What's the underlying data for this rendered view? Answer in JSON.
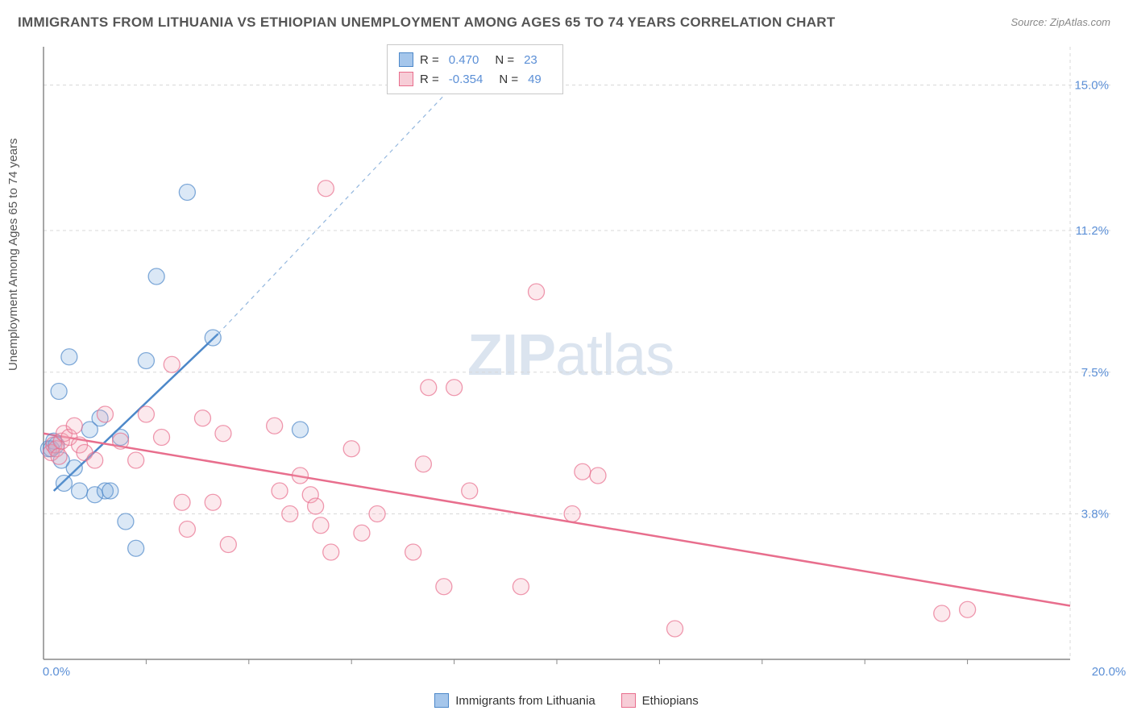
{
  "title": "IMMIGRANTS FROM LITHUANIA VS ETHIOPIAN UNEMPLOYMENT AMONG AGES 65 TO 74 YEARS CORRELATION CHART",
  "source": "Source: ZipAtlas.com",
  "y_axis_label": "Unemployment Among Ages 65 to 74 years",
  "watermark_bold": "ZIP",
  "watermark_light": "atlas",
  "chart": {
    "type": "scatter",
    "xlim": [
      0,
      20
    ],
    "ylim": [
      0,
      16
    ],
    "x_ticks": [
      0,
      20
    ],
    "x_tick_labels": [
      "0.0%",
      "20.0%"
    ],
    "y_ticks": [
      3.8,
      7.5,
      11.2,
      15.0
    ],
    "y_tick_labels": [
      "3.8%",
      "7.5%",
      "11.2%",
      "15.0%"
    ],
    "grid_color": "#d8d8d8",
    "axis_color": "#888888",
    "background_color": "#ffffff",
    "marker_radius": 10,
    "marker_fill_opacity": 0.25,
    "marker_stroke_width": 1.3,
    "series": [
      {
        "name": "Immigrants from Lithuania",
        "color": "#6fa3dd",
        "stroke": "#4d88c9",
        "R": "0.470",
        "N": "23",
        "points": [
          [
            0.1,
            5.5
          ],
          [
            0.15,
            5.5
          ],
          [
            0.2,
            5.7
          ],
          [
            0.25,
            5.6
          ],
          [
            0.3,
            7.0
          ],
          [
            0.35,
            5.2
          ],
          [
            0.4,
            4.6
          ],
          [
            0.5,
            7.9
          ],
          [
            0.6,
            5.0
          ],
          [
            0.7,
            4.4
          ],
          [
            0.9,
            6.0
          ],
          [
            1.0,
            4.3
          ],
          [
            1.1,
            6.3
          ],
          [
            1.2,
            4.4
          ],
          [
            1.3,
            4.4
          ],
          [
            1.5,
            5.8
          ],
          [
            1.6,
            3.6
          ],
          [
            1.8,
            2.9
          ],
          [
            2.0,
            7.8
          ],
          [
            2.2,
            10.0
          ],
          [
            2.8,
            12.2
          ],
          [
            3.3,
            8.4
          ],
          [
            5.0,
            6.0
          ]
        ],
        "regression": {
          "x1": 0.2,
          "y1": 4.4,
          "x2": 3.4,
          "y2": 8.5
        },
        "extrapolation": {
          "x1": 3.4,
          "y1": 8.5,
          "x2": 8.7,
          "y2": 16.0
        }
      },
      {
        "name": "Ethiopians",
        "color": "#f2a8b8",
        "stroke": "#e86e8d",
        "R": "-0.354",
        "N": "49",
        "points": [
          [
            0.15,
            5.4
          ],
          [
            0.2,
            5.6
          ],
          [
            0.25,
            5.5
          ],
          [
            0.3,
            5.3
          ],
          [
            0.35,
            5.7
          ],
          [
            0.4,
            5.9
          ],
          [
            0.5,
            5.8
          ],
          [
            0.6,
            6.1
          ],
          [
            0.7,
            5.6
          ],
          [
            0.8,
            5.4
          ],
          [
            1.0,
            5.2
          ],
          [
            1.2,
            6.4
          ],
          [
            1.5,
            5.7
          ],
          [
            1.8,
            5.2
          ],
          [
            2.0,
            6.4
          ],
          [
            2.3,
            5.8
          ],
          [
            2.5,
            7.7
          ],
          [
            2.7,
            4.1
          ],
          [
            2.8,
            3.4
          ],
          [
            3.1,
            6.3
          ],
          [
            3.3,
            4.1
          ],
          [
            3.5,
            5.9
          ],
          [
            3.6,
            3.0
          ],
          [
            4.5,
            6.1
          ],
          [
            4.6,
            4.4
          ],
          [
            4.8,
            3.8
          ],
          [
            5.0,
            4.8
          ],
          [
            5.2,
            4.3
          ],
          [
            5.3,
            4.0
          ],
          [
            5.4,
            3.5
          ],
          [
            5.5,
            12.3
          ],
          [
            5.6,
            2.8
          ],
          [
            6.0,
            5.5
          ],
          [
            6.2,
            3.3
          ],
          [
            6.5,
            3.8
          ],
          [
            7.2,
            2.8
          ],
          [
            7.4,
            5.1
          ],
          [
            7.5,
            7.1
          ],
          [
            7.8,
            1.9
          ],
          [
            8.0,
            7.1
          ],
          [
            8.3,
            4.4
          ],
          [
            9.3,
            1.9
          ],
          [
            9.6,
            9.6
          ],
          [
            10.3,
            3.8
          ],
          [
            10.5,
            4.9
          ],
          [
            10.8,
            4.8
          ],
          [
            12.3,
            0.8
          ],
          [
            17.5,
            1.2
          ],
          [
            18.0,
            1.3
          ]
        ],
        "regression": {
          "x1": 0,
          "y1": 5.9,
          "x2": 20,
          "y2": 1.4
        }
      }
    ],
    "legend_top": {
      "rows": [
        {
          "swatch": "#a5c6eb",
          "border": "#4d88c9",
          "r_label": "R =",
          "r_val": "0.470",
          "n_label": "N =",
          "n_val": "23"
        },
        {
          "swatch": "#f7cdd7",
          "border": "#e86e8d",
          "r_label": "R =",
          "r_val": "-0.354",
          "n_label": "N =",
          "n_val": "49"
        }
      ]
    },
    "legend_bottom": [
      {
        "swatch": "#a5c6eb",
        "border": "#4d88c9",
        "label": "Immigrants from Lithuania"
      },
      {
        "swatch": "#f7cdd7",
        "border": "#e86e8d",
        "label": "Ethiopians"
      }
    ]
  }
}
